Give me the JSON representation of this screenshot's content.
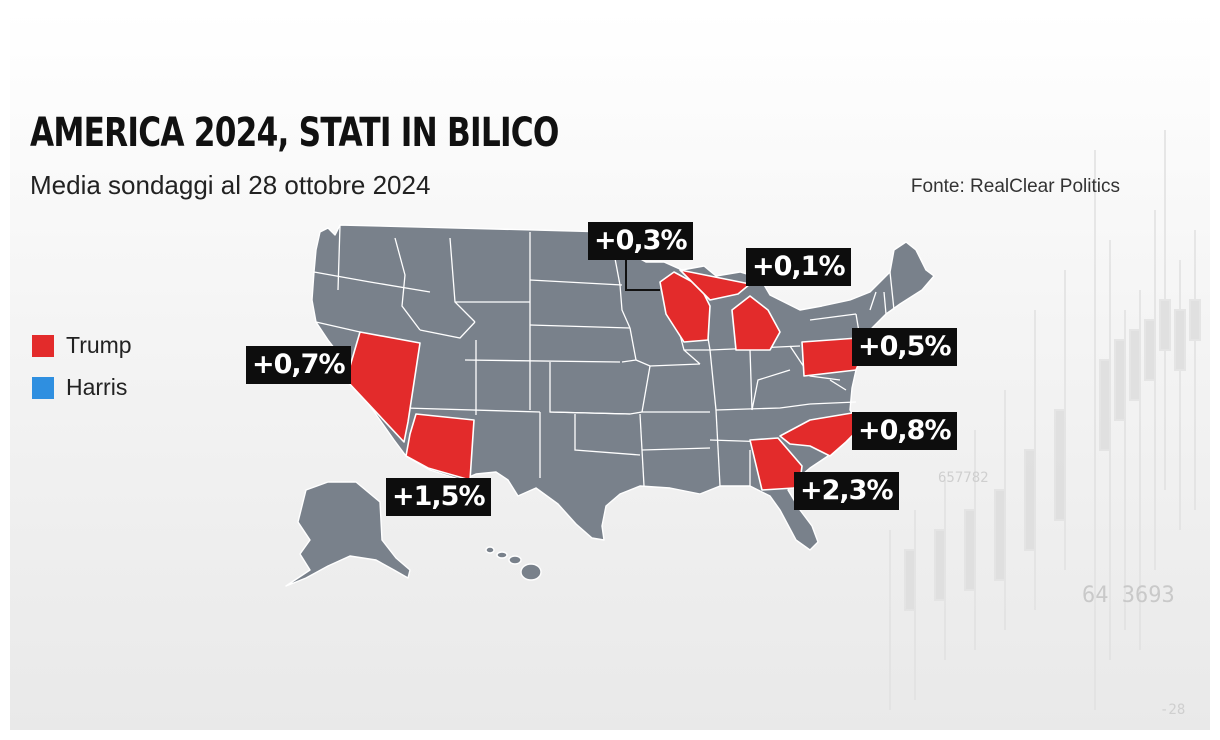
{
  "header": {
    "title": "AMERICA 2024, STATI IN BILICO",
    "subtitle": "Media sondaggi al 28 ottobre 2024",
    "source": "Fonte: RealClear Politics"
  },
  "legend": [
    {
      "label": "Trump",
      "color": "#e32b2b"
    },
    {
      "label": "Harris",
      "color": "#2f8fe0"
    }
  ],
  "colors": {
    "base_state": "#79818b",
    "state_border": "#ffffff",
    "badge_bg": "#0d0d0d"
  },
  "swing_states": [
    {
      "state": "Nevada",
      "leader": "Trump",
      "margin": "+0,7%"
    },
    {
      "state": "Arizona",
      "leader": "Trump",
      "margin": "+1,5%"
    },
    {
      "state": "Wisconsin",
      "leader": "Trump",
      "margin": "+0,3%"
    },
    {
      "state": "Michigan",
      "leader": "Trump",
      "margin": "+0,1%"
    },
    {
      "state": "Pennsylvania",
      "leader": "Trump",
      "margin": "+0,5%"
    },
    {
      "state": "North Carolina",
      "leader": "Trump",
      "margin": "+0,8%"
    },
    {
      "state": "Georgia",
      "leader": "Trump",
      "margin": "+2,3%"
    }
  ],
  "background_numbers": [
    "657782",
    "64 3693",
    "-28"
  ]
}
